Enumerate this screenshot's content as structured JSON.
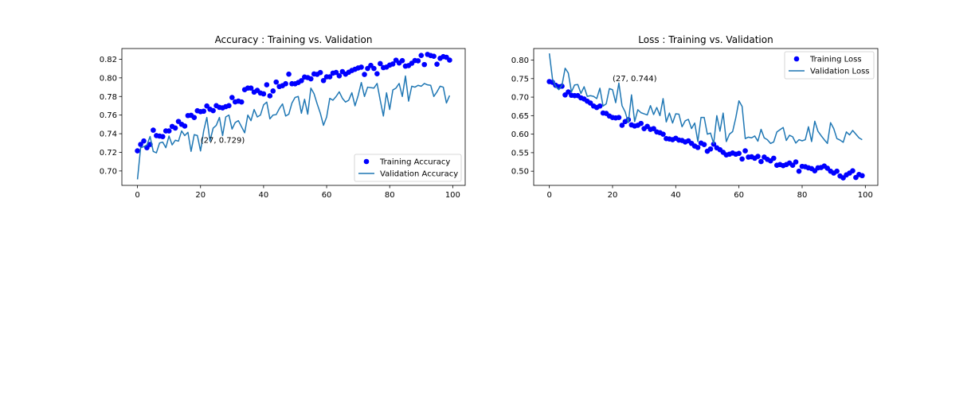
{
  "chart_data": [
    {
      "type": "line",
      "title": "Accuracy : Training vs. Validation",
      "xlabel": "",
      "ylabel": "",
      "xlim": [
        -4.95,
        103.95
      ],
      "ylim": [
        0.6845,
        0.8315
      ],
      "xticks": [
        0,
        20,
        40,
        60,
        80,
        100
      ],
      "yticks": [
        0.7,
        0.72,
        0.74,
        0.76,
        0.78,
        0.8,
        0.82
      ],
      "ytick_labels": [
        "0.70",
        "0.72",
        "0.74",
        "0.76",
        "0.78",
        "0.80",
        "0.82"
      ],
      "legend": {
        "position": "lower-right"
      },
      "annotation": {
        "text": "(27, 0.729)",
        "x": 20,
        "y": 0.7335
      },
      "series": [
        {
          "name": "Training Accuracy",
          "style": "markers",
          "color": "#0000ff",
          "values": [
            0.7216,
            0.7285,
            0.7322,
            0.725,
            0.7285,
            0.7438,
            0.738,
            0.7375,
            0.7369,
            0.743,
            0.743,
            0.7478,
            0.7461,
            0.7532,
            0.7501,
            0.7482,
            0.7595,
            0.7598,
            0.7574,
            0.7647,
            0.7637,
            0.7642,
            0.7698,
            0.7663,
            0.7648,
            0.7701,
            0.7683,
            0.7678,
            0.7691,
            0.7701,
            0.7789,
            0.7742,
            0.775,
            0.7741,
            0.7873,
            0.789,
            0.789,
            0.7847,
            0.7866,
            0.7837,
            0.7828,
            0.7926,
            0.7807,
            0.7859,
            0.7955,
            0.7907,
            0.7916,
            0.7937,
            0.804,
            0.7937,
            0.7936,
            0.795,
            0.797,
            0.8009,
            0.8003,
            0.799,
            0.8042,
            0.8038,
            0.8057,
            0.7971,
            0.8011,
            0.8011,
            0.8051,
            0.8058,
            0.8022,
            0.8067,
            0.804,
            0.806,
            0.8079,
            0.8092,
            0.8106,
            0.8115,
            0.8037,
            0.8101,
            0.8134,
            0.8101,
            0.8044,
            0.8153,
            0.811,
            0.8116,
            0.8137,
            0.8149,
            0.819,
            0.816,
            0.8185,
            0.8126,
            0.8132,
            0.8157,
            0.8186,
            0.8183,
            0.8241,
            0.8143,
            0.8252,
            0.824,
            0.8232,
            0.8147,
            0.821,
            0.8228,
            0.8221,
            0.8191
          ]
        },
        {
          "name": "Validation Accuracy",
          "style": "line",
          "color": "#1f77b4",
          "values": [
            0.691,
            0.725,
            0.726,
            0.728,
            0.737,
            0.721,
            0.7195,
            0.73,
            0.731,
            0.725,
            0.7375,
            0.728,
            0.733,
            0.732,
            0.743,
            0.738,
            0.7415,
            0.721,
            0.739,
            0.738,
            0.7215,
            0.743,
            0.7575,
            0.732,
            0.746,
            0.749,
            0.7575,
            0.738,
            0.758,
            0.76,
            0.745,
            0.752,
            0.754,
            0.7475,
            0.741,
            0.76,
            0.754,
            0.766,
            0.758,
            0.76,
            0.771,
            0.774,
            0.756,
            0.76,
            0.7605,
            0.767,
            0.772,
            0.759,
            0.761,
            0.773,
            0.779,
            0.78,
            0.762,
            0.777,
            0.761,
            0.789,
            0.783,
            0.772,
            0.762,
            0.749,
            0.758,
            0.778,
            0.776,
            0.78,
            0.785,
            0.778,
            0.774,
            0.776,
            0.784,
            0.77,
            0.781,
            0.795,
            0.78,
            0.79,
            0.7895,
            0.789,
            0.794,
            0.776,
            0.759,
            0.784,
            0.766,
            0.787,
            0.789,
            0.794,
            0.78,
            0.802,
            0.775,
            0.791,
            0.79,
            0.792,
            0.791,
            0.794,
            0.7925,
            0.792,
            0.78,
            0.785,
            0.791,
            0.79,
            0.773,
            0.781
          ]
        }
      ]
    },
    {
      "type": "line",
      "title": "Loss : Training vs. Validation",
      "xlabel": "",
      "ylabel": "",
      "xlim": [
        -4.95,
        103.95
      ],
      "ylim": [
        0.4617,
        0.8312
      ],
      "xticks": [
        0,
        20,
        40,
        60,
        80,
        100
      ],
      "yticks": [
        0.5,
        0.55,
        0.6,
        0.65,
        0.7,
        0.75,
        0.8
      ],
      "ytick_labels": [
        "0.50",
        "0.55",
        "0.60",
        "0.65",
        "0.70",
        "0.75",
        "0.80"
      ],
      "legend": {
        "position": "upper-right"
      },
      "annotation": {
        "text": "(27, 0.744)",
        "x": 20,
        "y": 0.7515
      },
      "series": [
        {
          "name": "Training Loss",
          "style": "markers",
          "color": "#0000ff",
          "values": [
            0.742,
            0.74,
            0.732,
            0.728,
            0.7295,
            0.706,
            0.714,
            0.705,
            0.704,
            0.704,
            0.698,
            0.695,
            0.689,
            0.684,
            0.676,
            0.672,
            0.676,
            0.657,
            0.656,
            0.649,
            0.645,
            0.644,
            0.645,
            0.624,
            0.634,
            0.639,
            0.625,
            0.622,
            0.624,
            0.629,
            0.615,
            0.621,
            0.613,
            0.615,
            0.606,
            0.604,
            0.6,
            0.588,
            0.587,
            0.585,
            0.589,
            0.584,
            0.583,
            0.579,
            0.582,
            0.575,
            0.568,
            0.564,
            0.576,
            0.572,
            0.554,
            0.56,
            0.573,
            0.563,
            0.558,
            0.551,
            0.544,
            0.546,
            0.549,
            0.546,
            0.548,
            0.533,
            0.555,
            0.538,
            0.539,
            0.535,
            0.54,
            0.526,
            0.538,
            0.532,
            0.528,
            0.535,
            0.516,
            0.518,
            0.515,
            0.518,
            0.522,
            0.516,
            0.525,
            0.5,
            0.513,
            0.512,
            0.509,
            0.507,
            0.501,
            0.509,
            0.51,
            0.514,
            0.508,
            0.5,
            0.495,
            0.5,
            0.487,
            0.482,
            0.49,
            0.495,
            0.501,
            0.483,
            0.491,
            0.488
          ]
        },
        {
          "name": "Validation Loss",
          "style": "line",
          "color": "#1f77b4",
          "values": [
            0.818,
            0.749,
            0.729,
            0.72,
            0.732,
            0.778,
            0.765,
            0.714,
            0.733,
            0.734,
            0.71,
            0.728,
            0.702,
            0.704,
            0.702,
            0.696,
            0.724,
            0.676,
            0.682,
            0.723,
            0.72,
            0.685,
            0.738,
            0.677,
            0.66,
            0.631,
            0.706,
            0.634,
            0.666,
            0.658,
            0.655,
            0.652,
            0.677,
            0.653,
            0.672,
            0.65,
            0.696,
            0.633,
            0.657,
            0.63,
            0.655,
            0.654,
            0.62,
            0.636,
            0.64,
            0.615,
            0.63,
            0.58,
            0.645,
            0.645,
            0.6,
            0.603,
            0.575,
            0.65,
            0.608,
            0.657,
            0.58,
            0.6,
            0.607,
            0.644,
            0.69,
            0.675,
            0.588,
            0.592,
            0.59,
            0.595,
            0.581,
            0.613,
            0.59,
            0.585,
            0.575,
            0.579,
            0.606,
            0.612,
            0.618,
            0.583,
            0.597,
            0.593,
            0.576,
            0.585,
            0.582,
            0.585,
            0.62,
            0.58,
            0.635,
            0.608,
            0.596,
            0.585,
            0.575,
            0.631,
            0.615,
            0.588,
            0.584,
            0.578,
            0.606,
            0.598,
            0.61,
            0.6,
            0.59,
            0.585
          ]
        }
      ]
    }
  ]
}
